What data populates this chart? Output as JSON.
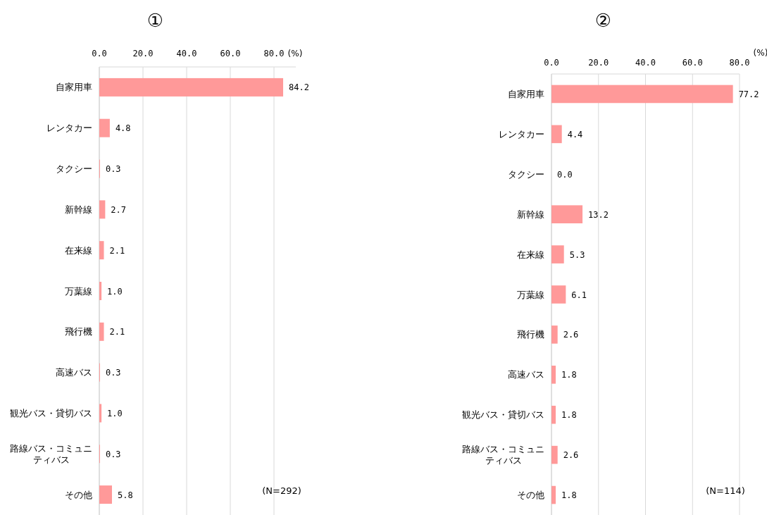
{
  "chart_data": [
    {
      "type": "bar",
      "orientation": "horizontal",
      "title": "①",
      "xlabel": "(%)",
      "categories": [
        "自家用車",
        "レンタカー",
        "タクシー",
        "新幹線",
        "在来線",
        "万葉線",
        "飛行機",
        "高速バス",
        "観光バス・貸切バス",
        "路線バス・コミュニティバス",
        "その他"
      ],
      "values": [
        84.2,
        4.8,
        0.3,
        2.7,
        2.1,
        1.0,
        2.1,
        0.3,
        1.0,
        0.3,
        5.8
      ],
      "value_labels": [
        "84.2",
        "4.8",
        "0.3",
        "2.7",
        "2.1",
        "1.0",
        "2.1",
        "0.3",
        "1.0",
        "0.3",
        "5.8"
      ],
      "color": "#ff9999",
      "xlim": [
        0,
        90
      ],
      "xticks": [
        {
          "value": 0,
          "label": "0.0"
        },
        {
          "value": 20,
          "label": "20.0"
        },
        {
          "value": 40,
          "label": "40.0"
        },
        {
          "value": 60,
          "label": "60.0"
        },
        {
          "value": 80,
          "label": "80.0"
        }
      ],
      "grid": "x",
      "annotations": [
        "(N=292)"
      ]
    },
    {
      "type": "bar",
      "orientation": "horizontal",
      "title": "②",
      "xlabel": "(%)",
      "categories": [
        "自家用車",
        "レンタカー",
        "タクシー",
        "新幹線",
        "在来線",
        "万葉線",
        "飛行機",
        "高速バス",
        "観光バス・貸切バス",
        "路線バス・コミュニティバス",
        "その他"
      ],
      "values": [
        77.2,
        4.4,
        0.0,
        13.2,
        5.3,
        6.1,
        2.6,
        1.8,
        1.8,
        2.6,
        1.8
      ],
      "value_labels": [
        "77.2",
        "4.4",
        "0.0",
        "13.2",
        "5.3",
        "6.1",
        "2.6",
        "1.8",
        "1.8",
        "2.6",
        "1.8"
      ],
      "color": "#ff9999",
      "xlim": [
        0,
        80
      ],
      "xticks": [
        {
          "value": 0,
          "label": "0.0"
        },
        {
          "value": 20,
          "label": "20.0"
        },
        {
          "value": 40,
          "label": "40.0"
        },
        {
          "value": 60,
          "label": "60.0"
        },
        {
          "value": 80,
          "label": "80.0"
        }
      ],
      "grid": "x",
      "annotations": [
        "(N=114)"
      ]
    }
  ]
}
